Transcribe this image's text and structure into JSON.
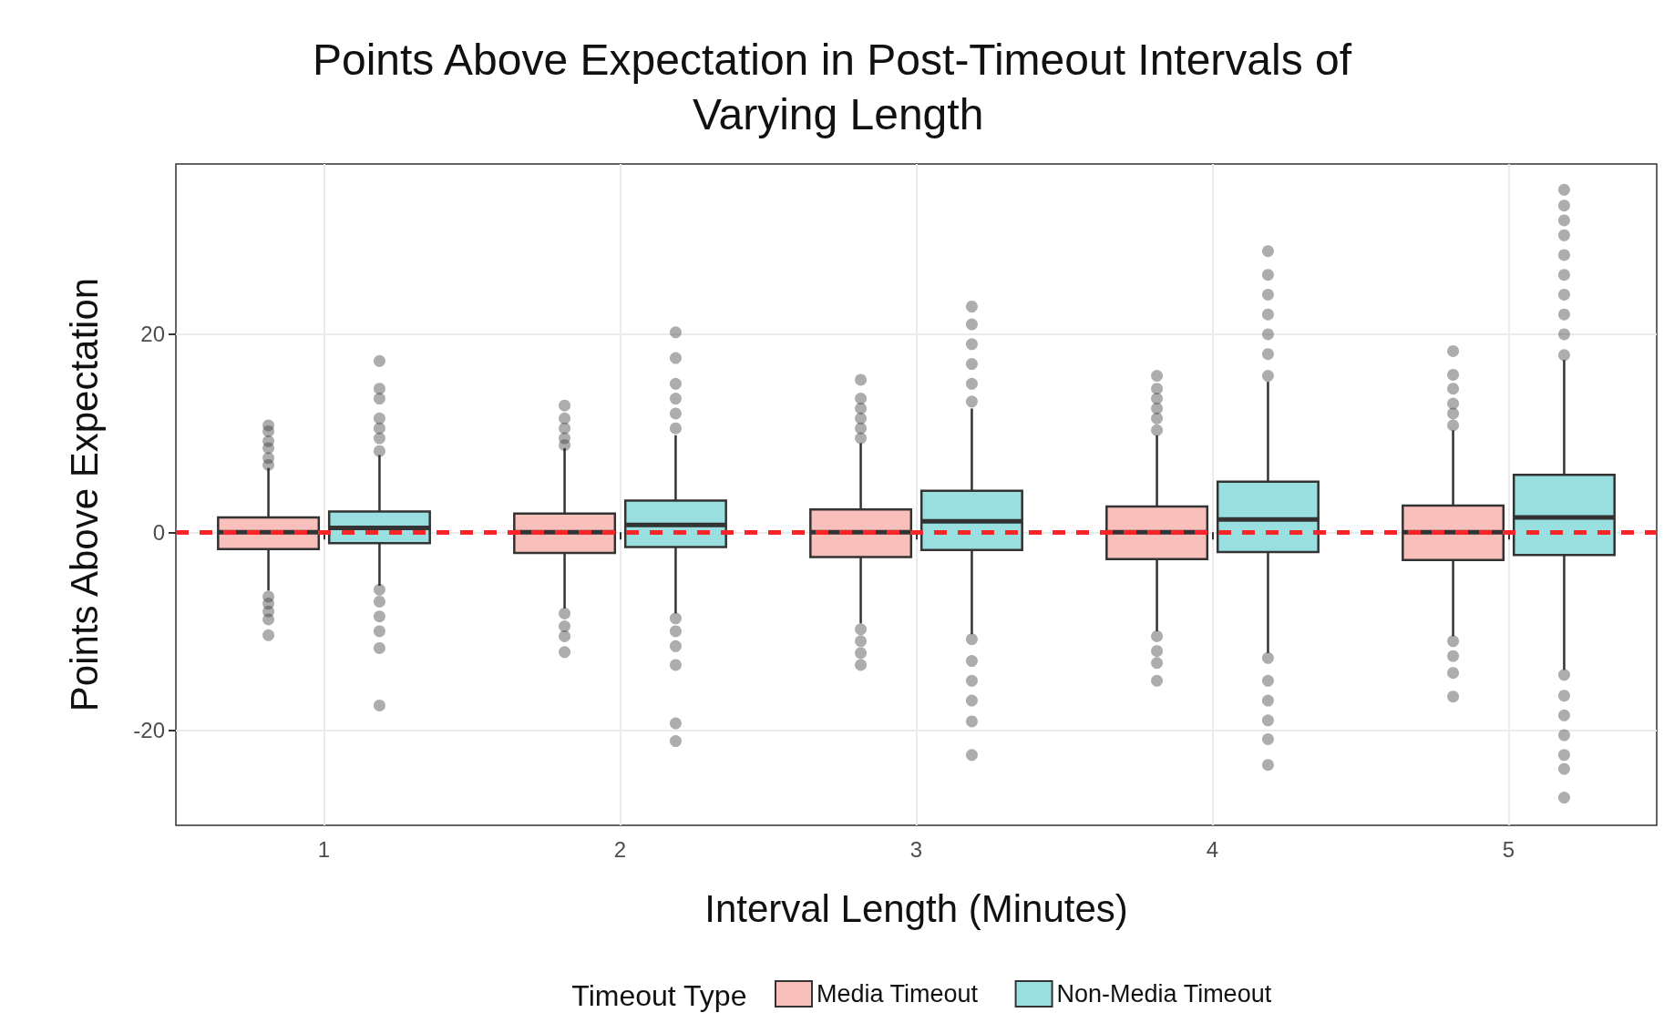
{
  "chart_data": {
    "type": "box",
    "title": "Points Above Expectation in Post-Timeout Intervals of Varying Length",
    "xlabel": "Interval Length (Minutes)",
    "ylabel": "Points Above Expectation",
    "legend_title": "Timeout Type",
    "categories": [
      "1",
      "2",
      "3",
      "4",
      "5"
    ],
    "ylim": [
      -29.6,
      37.2
    ],
    "yticks": [
      -20,
      0,
      20
    ],
    "grid": true,
    "legend": "bottom",
    "ref_lines": [
      {
        "axis": "y",
        "value": 0,
        "color": "#f8262a",
        "line_style": "dashed"
      }
    ],
    "series": [
      {
        "name": "Media Timeout",
        "color": "#f8bfbb",
        "boxes": [
          {
            "low": -5.9,
            "q1": -1.7,
            "median": 0,
            "q3": 1.5,
            "high": 6.5,
            "outliers": [
              6.8,
              7.5,
              8.5,
              9.2,
              10.2,
              10.8,
              -6.5,
              -7.2,
              -8.0,
              -8.8,
              -10.4
            ]
          },
          {
            "low": -7.7,
            "q1": -2.1,
            "median": 0,
            "q3": 1.9,
            "high": 8.5,
            "outliers": [
              8.8,
              9.5,
              10.5,
              11.5,
              12.8,
              -8.2,
              -9.5,
              -10.5,
              -12.1
            ]
          },
          {
            "low": -9.2,
            "q1": -2.5,
            "median": 0,
            "q3": 2.3,
            "high": 9.0,
            "outliers": [
              9.5,
              10.5,
              11.5,
              12.5,
              13.5,
              15.4,
              -9.8,
              -11,
              -12.2,
              -13.4
            ]
          },
          {
            "low": -10.0,
            "q1": -2.7,
            "median": 0,
            "q3": 2.6,
            "high": 9.8,
            "outliers": [
              10.3,
              11.5,
              12.5,
              13.5,
              14.5,
              15.8,
              -10.5,
              -12,
              -13.2,
              -15
            ]
          },
          {
            "low": -10.5,
            "q1": -2.8,
            "median": 0,
            "q3": 2.7,
            "high": 10.3,
            "outliers": [
              10.8,
              12,
              13,
              14.5,
              15.9,
              18.3,
              -11,
              -12.5,
              -14.2,
              -16.6
            ]
          }
        ]
      },
      {
        "name": "Non-Media Timeout",
        "color": "#9adfe0",
        "boxes": [
          {
            "low": -5.4,
            "q1": -1.1,
            "median": 0.45,
            "q3": 2.1,
            "high": 7.8,
            "outliers": [
              8.2,
              9.5,
              10.5,
              11.5,
              13.5,
              14.5,
              17.3,
              -5.8,
              -7,
              -8.5,
              -10,
              -11.7,
              -17.5
            ]
          },
          {
            "low": -8.2,
            "q1": -1.5,
            "median": 0.75,
            "q3": 3.2,
            "high": 9.8,
            "outliers": [
              10.5,
              12,
              13.5,
              15,
              17.6,
              20.2,
              -8.7,
              -10,
              -11.5,
              -13.4,
              -19.3,
              -21.1
            ]
          },
          {
            "low": -10.3,
            "q1": -1.8,
            "median": 1.1,
            "q3": 4.2,
            "high": 12.5,
            "outliers": [
              13.2,
              15,
              17,
              19,
              21,
              22.8,
              -10.8,
              -13,
              -15,
              -17,
              -19.1,
              -22.5
            ]
          },
          {
            "low": -12.2,
            "q1": -2.0,
            "median": 1.3,
            "q3": 5.1,
            "high": 15.2,
            "outliers": [
              15.8,
              18,
              20,
              22,
              24,
              26,
              28.4,
              -12.7,
              -15,
              -17,
              -19,
              -20.9,
              -23.5
            ]
          },
          {
            "low": -13.9,
            "q1": -2.3,
            "median": 1.5,
            "q3": 5.8,
            "high": 17.4,
            "outliers": [
              17.9,
              20,
              22,
              24,
              26,
              28,
              30,
              31.5,
              33,
              34.6,
              -14.4,
              -16.5,
              -18.5,
              -20.5,
              -22.5,
              -23.9,
              -26.8
            ]
          }
        ]
      }
    ]
  }
}
